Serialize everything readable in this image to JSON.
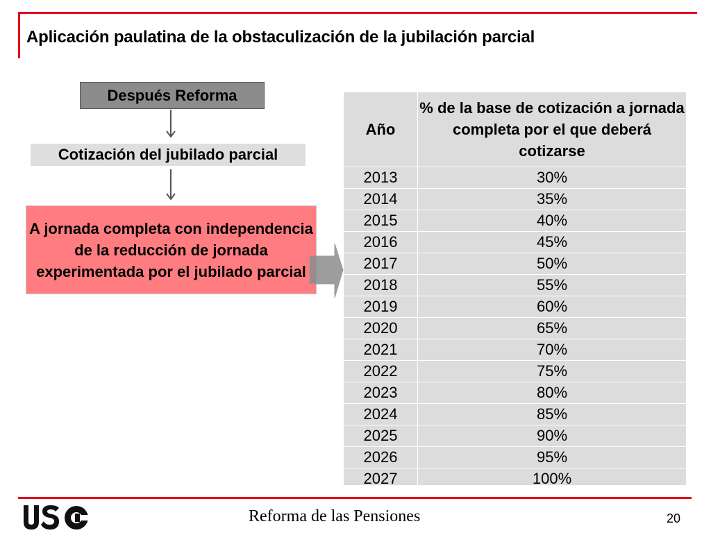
{
  "title": "Aplicación paulatina de la obstaculización de la jubilación parcial",
  "flow": {
    "after_reform": "Después Reforma",
    "contribution": "Cotización del jubilado parcial",
    "result": "A jornada completa con independencia de la reducción de jornada experimentada por el jubilado parcial"
  },
  "table": {
    "header_year": "Año",
    "header_percent": "% de la base de cotización a jornada completa por el que deberá cotizarse",
    "rows": [
      {
        "year": "2013",
        "percent": "30%"
      },
      {
        "year": "2014",
        "percent": "35%"
      },
      {
        "year": "2015",
        "percent": "40%"
      },
      {
        "year": "2016",
        "percent": "45%"
      },
      {
        "year": "2017",
        "percent": "50%"
      },
      {
        "year": "2018",
        "percent": "55%"
      },
      {
        "year": "2019",
        "percent": "60%"
      },
      {
        "year": "2020",
        "percent": "65%"
      },
      {
        "year": "2021",
        "percent": "70%"
      },
      {
        "year": "2022",
        "percent": "75%"
      },
      {
        "year": "2023",
        "percent": "80%"
      },
      {
        "year": "2024",
        "percent": "85%"
      },
      {
        "year": "2025",
        "percent": "90%"
      },
      {
        "year": "2026",
        "percent": "95%"
      },
      {
        "year": "2027",
        "percent": "100%"
      }
    ]
  },
  "footer": {
    "logo": "USO",
    "text": "Reforma de las Pensiones",
    "page": "20"
  },
  "colors": {
    "accent_red": "#e3061a",
    "result_box": "#ff7c80",
    "header_box": "#8c8c8c",
    "table_bg": "#dcdcdc"
  }
}
